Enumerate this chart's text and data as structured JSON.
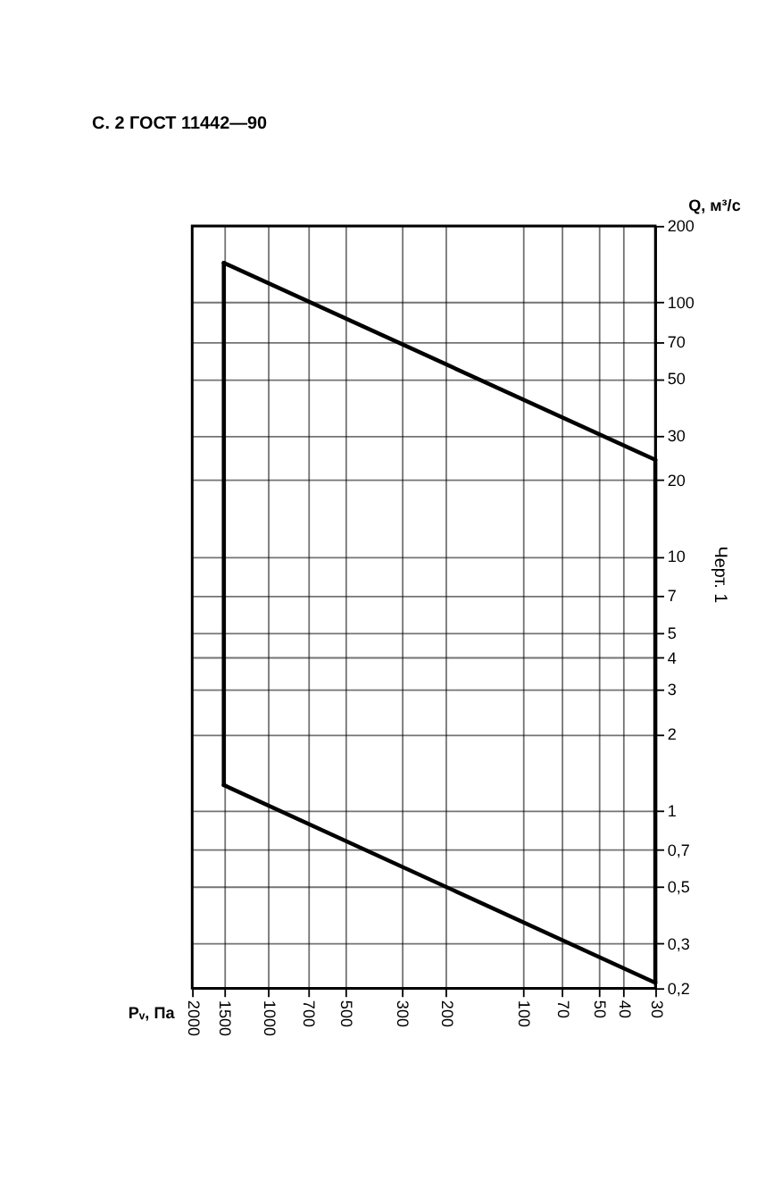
{
  "chart_data": {
    "type": "line",
    "title": "С. 2 ГОСТ 11442—90",
    "xlabel": "Pᵥ, Па",
    "ylabel": "Q, м³/с",
    "annotations": [
      "Черт. 1"
    ],
    "x": [
      1500,
      30
    ],
    "series": [
      {
        "color": "#000000",
        "values": [
          143,
          24
        ]
      },
      {
        "color": "#000000",
        "values": [
          1.26,
          0.21
        ]
      },
      {
        "color": "#000000",
        "x": [
          1500,
          1500
        ],
        "values": [
          1.26,
          143
        ]
      }
    ],
    "log": "xy",
    "xlim": [
      2000,
      30
    ],
    "xticks": [
      2000,
      1500,
      1000,
      700,
      500,
      300,
      200,
      100,
      70,
      50,
      40,
      30
    ],
    "ylim": [
      0.2,
      200
    ],
    "yticks": [
      {
        "value": 0.2,
        "label": "0,2"
      },
      {
        "value": 0.3,
        "label": "0,3"
      },
      {
        "value": 0.5,
        "label": "0,5"
      },
      {
        "value": 0.7,
        "label": "0,7"
      },
      1,
      2,
      3,
      4,
      5,
      7,
      10,
      20,
      30,
      50,
      70,
      100,
      200
    ],
    "grid": true,
    "marker": "none",
    "line_style": "solid",
    "legend": false
  }
}
